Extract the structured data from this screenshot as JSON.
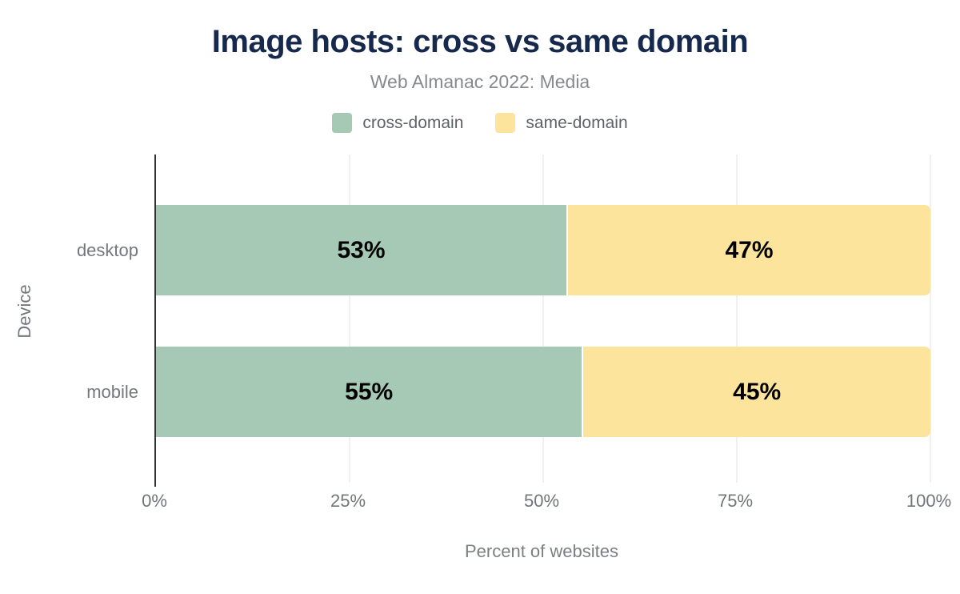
{
  "title": "Image hosts: cross vs same domain",
  "subtitle": "Web Almanac 2022: Media",
  "legend": [
    {
      "label": "cross-domain",
      "color": "#a6c9b5"
    },
    {
      "label": "same-domain",
      "color": "#fde49c"
    }
  ],
  "chart_data": {
    "type": "bar",
    "orientation": "horizontal",
    "stacked": true,
    "title": "Image hosts: cross vs same domain",
    "subtitle": "Web Almanac 2022: Media",
    "categories": [
      "desktop",
      "mobile"
    ],
    "series": [
      {
        "name": "cross-domain",
        "color": "#a6c9b5",
        "values": [
          53,
          55
        ]
      },
      {
        "name": "same-domain",
        "color": "#fde49c",
        "values": [
          47,
          45
        ]
      }
    ],
    "value_labels": [
      [
        "53%",
        "47%"
      ],
      [
        "55%",
        "45%"
      ]
    ],
    "xlabel": "Percent of websites",
    "ylabel": "Device",
    "x_ticks": [
      "0%",
      "25%",
      "50%",
      "75%",
      "100%"
    ],
    "x_tick_positions": [
      0,
      25,
      50,
      75,
      100
    ],
    "xlim": [
      0,
      100
    ],
    "grid": "vertical",
    "legend_position": "top"
  },
  "colors": {
    "title": "#16294d",
    "subtitle": "#86898d",
    "axis_text": "#74787c",
    "bar_label": "#000000",
    "axis_line": "#323232",
    "gridline": "#f0f0f0",
    "background": "#ffffff"
  }
}
